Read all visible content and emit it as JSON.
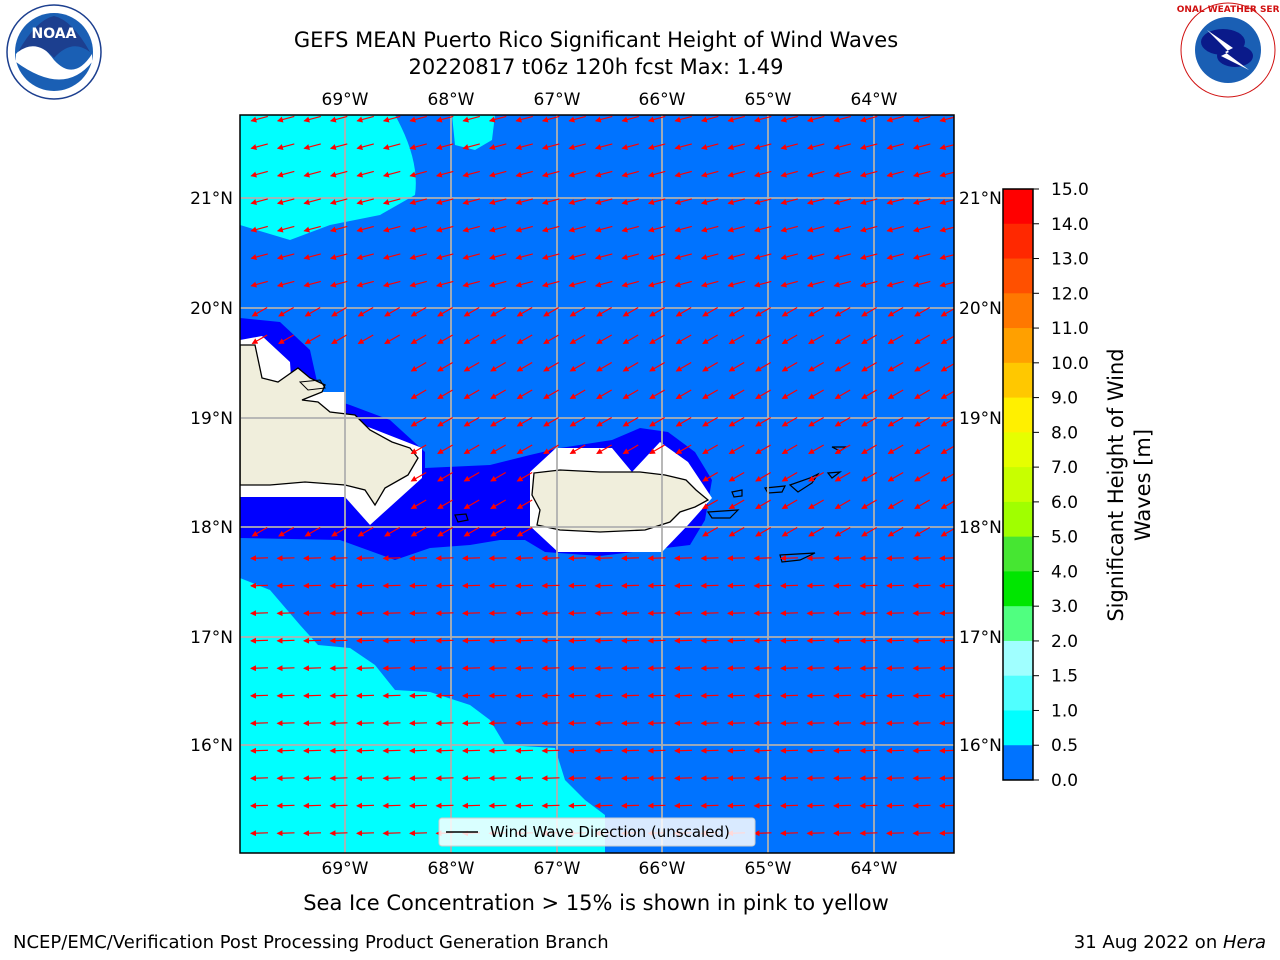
{
  "header": {
    "title_line1": "GEFS MEAN Puerto Rico Significant Height of Wind Waves",
    "title_line2": "20220817 t06z 120h fcst   Max: 1.49"
  },
  "logos": {
    "left": {
      "icon": "noaa-logo-icon",
      "text": "NOAA"
    },
    "right": {
      "icon": "nws-logo-icon",
      "text": "NATIONAL WEATHER SERVICE"
    }
  },
  "map": {
    "lon_labels": [
      "69°W",
      "68°W",
      "67°W",
      "66°W",
      "65°W",
      "64°W"
    ],
    "lat_labels": [
      "21°N",
      "20°N",
      "19°N",
      "18°N",
      "17°N",
      "16°N"
    ],
    "legend_label": "Wind Wave Direction (unscaled)",
    "colors": {
      "level_0": "#0000ff",
      "level_1": "#0073ff",
      "level_2": "#00ffff",
      "land": "#f0eedc",
      "arrows": "#ff0000",
      "grid": "#b0b0b0"
    }
  },
  "colorbar": {
    "label_line1": "Significant Height of Wind",
    "label_line2": "Waves [m]",
    "ticks": [
      "15.0",
      "14.0",
      "13.0",
      "12.0",
      "11.0",
      "10.0",
      "9.0",
      "8.0",
      "7.0",
      "6.0",
      "5.0",
      "4.0",
      "3.0",
      "2.0",
      "1.5",
      "1.0",
      "0.5",
      "0.0"
    ],
    "colors_top_to_bottom": [
      "#ff0000",
      "#ff2800",
      "#ff5000",
      "#ff7800",
      "#ffa000",
      "#ffc800",
      "#fff000",
      "#e6ff00",
      "#c8ff00",
      "#a0ff00",
      "#46e632",
      "#00e600",
      "#50ff80",
      "#a0ffff",
      "#50ffff",
      "#00ffff",
      "#0073ff",
      "#0000ff"
    ]
  },
  "notes": {
    "sea_ice": "Sea Ice Concentration > 15% is shown in pink to yellow"
  },
  "footer": {
    "left": "NCEP/EMC/Verification Post Processing Product Generation Branch",
    "right_date": "31 Aug 2022 on ",
    "right_host": "Hera"
  }
}
